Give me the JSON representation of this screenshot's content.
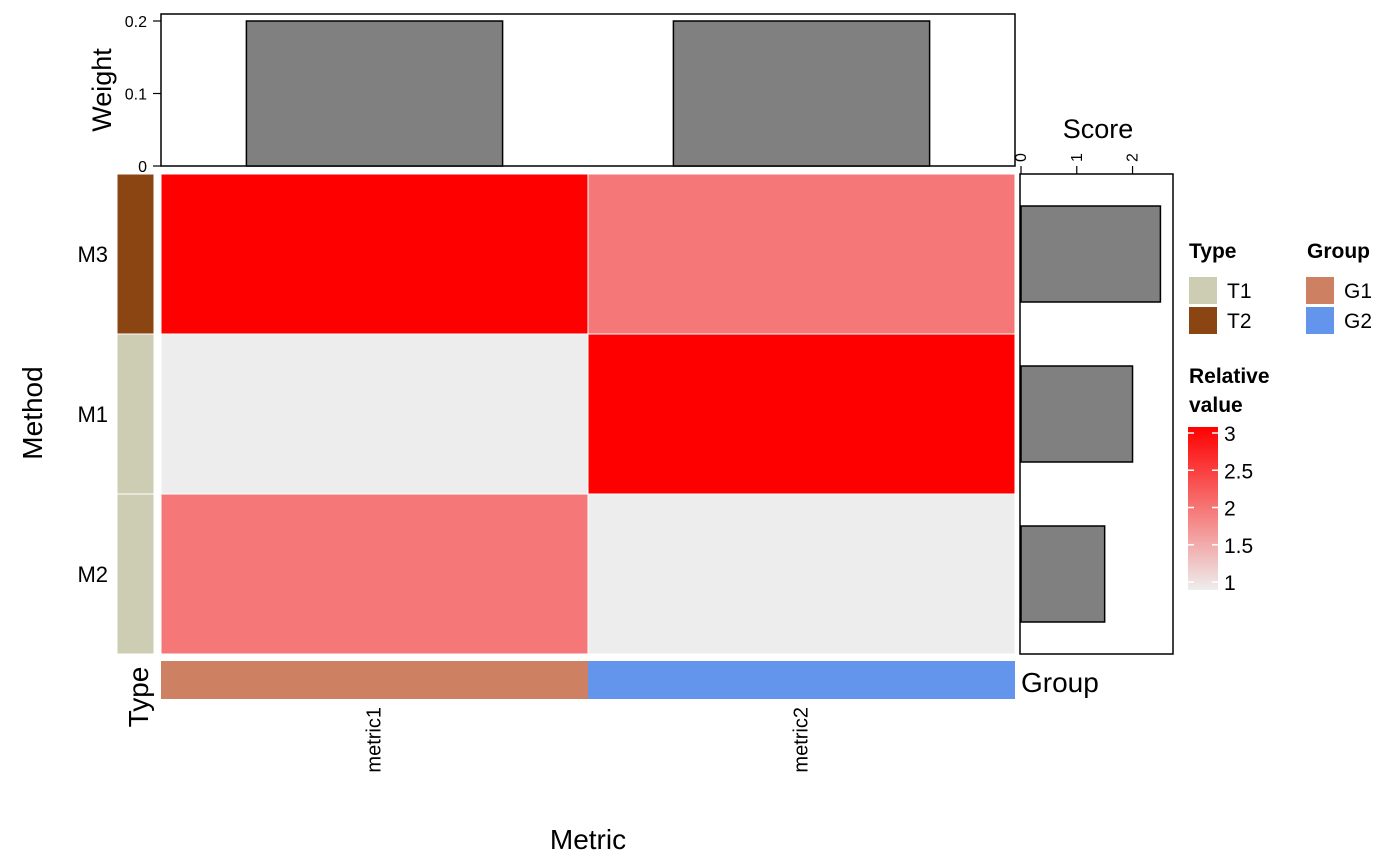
{
  "chart_data": {
    "type": "heatmap",
    "xlabel": "Metric",
    "ylabel": "Method",
    "metrics": [
      "metric1",
      "metric2"
    ],
    "methods": [
      "M3",
      "M1",
      "M2"
    ],
    "values": [
      [
        3,
        2
      ],
      [
        1,
        3
      ],
      [
        2,
        1
      ]
    ],
    "method_type": [
      "T2",
      "T1",
      "T1"
    ],
    "metric_group": [
      "G1",
      "G2"
    ],
    "weight": {
      "axis_title": "Weight",
      "values": [
        0.2,
        0.2
      ],
      "ylim": [
        0,
        0.2
      ],
      "ticks": [
        "0",
        "0.1",
        "0.2"
      ]
    },
    "score": {
      "axis_title": "Score",
      "values": [
        2.5,
        2.0,
        1.5
      ],
      "xlim": [
        0,
        2.6
      ],
      "ticks": [
        "0",
        "1",
        "2"
      ]
    },
    "type_axis_label": "Type",
    "group_axis_label": "Group",
    "legends": {
      "type": {
        "title": "Type",
        "items": [
          {
            "label": "T1",
            "color": "#cdcdb4"
          },
          {
            "label": "T2",
            "color": "#8b4513"
          }
        ]
      },
      "group": {
        "title": "Group",
        "items": [
          {
            "label": "G1",
            "color": "#cd8162"
          },
          {
            "label": "G2",
            "color": "#6495ed"
          }
        ]
      },
      "relative_value": {
        "title_line1": "Relative",
        "title_line2": "value",
        "ticks": [
          "3",
          "2.5",
          "2",
          "1.5",
          "1"
        ],
        "range": [
          1,
          3
        ],
        "low_color": "#ededed",
        "high_color": "#ff0000"
      }
    },
    "bar_color": "#808080"
  }
}
